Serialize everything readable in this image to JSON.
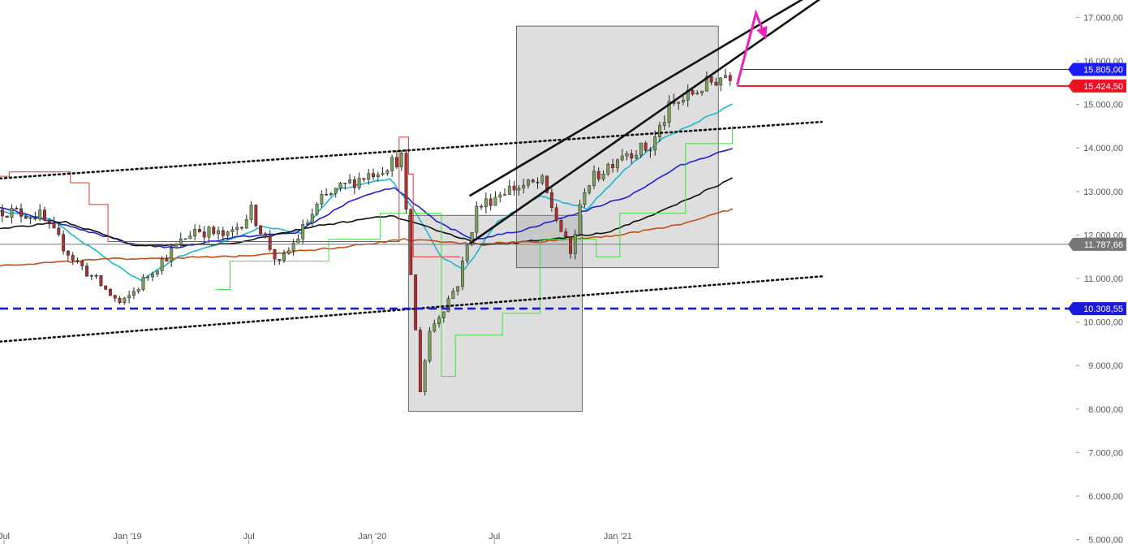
{
  "chart_data": {
    "type": "candlestick",
    "y_axis": {
      "position": "right",
      "range": [
        4900,
        17400
      ],
      "ticks": [
        {
          "value": 5000,
          "label": "5.000,00"
        },
        {
          "value": 6000,
          "label": "6.000,00"
        },
        {
          "value": 7000,
          "label": "7.000,00"
        },
        {
          "value": 8000,
          "label": "8.000,00"
        },
        {
          "value": 9000,
          "label": "9.000,00"
        },
        {
          "value": 10000,
          "label": "10.000,00"
        },
        {
          "value": 11000,
          "label": "11.000,00"
        },
        {
          "value": 12000,
          "label": "12.000,00"
        },
        {
          "value": 13000,
          "label": "13.000,00"
        },
        {
          "value": 14000,
          "label": "14.000,00"
        },
        {
          "value": 15000,
          "label": "15.000,00"
        },
        {
          "value": 16000,
          "label": "16.000,00"
        },
        {
          "value": 17000,
          "label": "17.000,00"
        }
      ]
    },
    "x_axis": {
      "range": [
        "2018-06-25",
        "2021-07-12"
      ],
      "ticks": [
        {
          "date": "2018-07-01",
          "label": "Jul"
        },
        {
          "date": "2019-01-01",
          "label": "Jan '19"
        },
        {
          "date": "2019-07-01",
          "label": "Jul"
        },
        {
          "date": "2020-01-01",
          "label": "Jan '20"
        },
        {
          "date": "2020-07-01",
          "label": "Jul"
        },
        {
          "date": "2021-01-01",
          "label": "Jan '21"
        }
      ]
    },
    "price_lines": [
      {
        "value": 15805,
        "label": "15.805,00",
        "color": "#1a1aff",
        "style": "solid"
      },
      {
        "value": 15424.5,
        "label": "15.424,50",
        "color": "#ee1122",
        "style": "solid"
      },
      {
        "value": 11787.66,
        "label": "11.787,66",
        "color": "#777777",
        "style": "solid"
      },
      {
        "value": 10308.55,
        "label": "10.308,55",
        "color": "#1a1adb",
        "style": "dashed"
      }
    ],
    "key_points": [
      {
        "date": "2018-06-25",
        "value": 12580
      },
      {
        "date": "2018-08-27",
        "value": 12440
      },
      {
        "date": "2018-10-15",
        "value": 11470
      },
      {
        "date": "2018-12-27",
        "value": 10380
      },
      {
        "date": "2019-02-11",
        "value": 11200
      },
      {
        "date": "2019-04-15",
        "value": 12150
      },
      {
        "date": "2019-06-03",
        "value": 11950
      },
      {
        "date": "2019-07-08",
        "value": 12550
      },
      {
        "date": "2019-08-19",
        "value": 11300
      },
      {
        "date": "2019-10-21",
        "value": 12800
      },
      {
        "date": "2019-12-02",
        "value": 13200
      },
      {
        "date": "2020-01-13",
        "value": 13500
      },
      {
        "date": "2020-02-17",
        "value": 13780
      },
      {
        "date": "2020-03-16",
        "value": 8450
      },
      {
        "date": "2020-03-30",
        "value": 9800
      },
      {
        "date": "2020-05-11",
        "value": 10900
      },
      {
        "date": "2020-06-08",
        "value": 12600
      },
      {
        "date": "2020-07-20",
        "value": 13050
      },
      {
        "date": "2020-09-14",
        "value": 13200
      },
      {
        "date": "2020-10-26",
        "value": 11550
      },
      {
        "date": "2020-11-16",
        "value": 13100
      },
      {
        "date": "2021-01-11",
        "value": 13900
      },
      {
        "date": "2021-02-22",
        "value": 14000
      },
      {
        "date": "2021-03-22",
        "value": 14900
      },
      {
        "date": "2021-05-10",
        "value": 15400
      },
      {
        "date": "2021-06-14",
        "value": 15700
      }
    ],
    "overlays": [
      {
        "name": "sma-fast",
        "color": "#1ab8cc",
        "points": [
          [
            "2018-06-25",
            12550
          ],
          [
            "2018-09-10",
            12350
          ],
          [
            "2018-12-10",
            11350
          ],
          [
            "2019-01-21",
            10950
          ],
          [
            "2019-03-18",
            11500
          ],
          [
            "2019-06-03",
            11900
          ],
          [
            "2019-07-22",
            12200
          ],
          [
            "2019-09-16",
            12050
          ],
          [
            "2019-11-11",
            13050
          ],
          [
            "2020-01-27",
            13300
          ],
          [
            "2020-03-02",
            12600
          ],
          [
            "2020-04-13",
            11500
          ],
          [
            "2020-05-18",
            11200
          ],
          [
            "2020-07-06",
            12300
          ],
          [
            "2020-09-07",
            12900
          ],
          [
            "2020-11-16",
            12600
          ],
          [
            "2021-01-11",
            13500
          ],
          [
            "2021-03-08",
            14200
          ],
          [
            "2021-06-21",
            15000
          ]
        ]
      },
      {
        "name": "sma-medium",
        "color": "#2222cc",
        "points": [
          [
            "2018-06-25",
            12650
          ],
          [
            "2018-10-08",
            12200
          ],
          [
            "2019-01-07",
            11800
          ],
          [
            "2019-03-11",
            11700
          ],
          [
            "2019-06-10",
            11950
          ],
          [
            "2019-09-09",
            12050
          ],
          [
            "2019-12-02",
            12800
          ],
          [
            "2020-02-03",
            13100
          ],
          [
            "2020-04-06",
            12300
          ],
          [
            "2020-06-01",
            11900
          ],
          [
            "2020-08-10",
            12100
          ],
          [
            "2020-11-02",
            12500
          ],
          [
            "2021-01-18",
            12900
          ],
          [
            "2021-04-05",
            13600
          ],
          [
            "2021-06-21",
            14000
          ]
        ]
      },
      {
        "name": "sma-slow",
        "color": "#111111",
        "points": [
          [
            "2018-06-25",
            12150
          ],
          [
            "2018-10-01",
            12300
          ],
          [
            "2019-01-14",
            11750
          ],
          [
            "2019-06-03",
            11800
          ],
          [
            "2019-10-07",
            12200
          ],
          [
            "2020-01-27",
            12450
          ],
          [
            "2020-04-20",
            12050
          ],
          [
            "2020-06-15",
            11750
          ],
          [
            "2020-09-21",
            11900
          ],
          [
            "2020-12-14",
            12050
          ],
          [
            "2021-03-08",
            12550
          ],
          [
            "2021-06-21",
            13300
          ]
        ]
      },
      {
        "name": "sma-200",
        "color": "#c0501a",
        "points": [
          [
            "2018-06-25",
            11300
          ],
          [
            "2018-12-10",
            11450
          ],
          [
            "2019-06-03",
            11500
          ],
          [
            "2019-11-04",
            11700
          ],
          [
            "2020-02-17",
            11900
          ],
          [
            "2020-05-25",
            11800
          ],
          [
            "2020-09-07",
            11850
          ],
          [
            "2021-01-04",
            12000
          ],
          [
            "2021-04-05",
            12250
          ],
          [
            "2021-06-21",
            12600
          ]
        ]
      },
      {
        "name": "trailing-stop-red",
        "color": "#e83030",
        "points": [
          [
            "2018-06-25",
            13350
          ],
          [
            "2018-07-09",
            13450
          ],
          [
            "2018-09-03",
            13450
          ],
          [
            "2018-10-08",
            13200
          ],
          [
            "2018-11-05",
            12700
          ],
          [
            "2018-12-03",
            11850
          ],
          [
            "2019-01-28",
            11850
          ],
          [
            "2019-05-06",
            11850
          ],
          [
            "2020-02-10",
            14250
          ],
          [
            "2020-02-24",
            13400
          ],
          [
            "2020-03-02",
            11500
          ],
          [
            "2020-05-11",
            11500
          ]
        ]
      },
      {
        "name": "trailing-stop-green",
        "color": "#44dd44",
        "points": [
          [
            "2019-05-13",
            10750
          ],
          [
            "2019-06-03",
            11400
          ],
          [
            "2019-10-07",
            11400
          ],
          [
            "2019-10-28",
            11900
          ],
          [
            "2020-01-13",
            12500
          ],
          [
            "2020-04-13",
            8750
          ],
          [
            "2020-05-04",
            9700
          ],
          [
            "2020-07-13",
            10200
          ],
          [
            "2020-09-07",
            11900
          ],
          [
            "2020-11-30",
            11500
          ],
          [
            "2021-01-04",
            12500
          ],
          [
            "2021-04-12",
            14100
          ],
          [
            "2021-06-21",
            14500
          ]
        ]
      }
    ],
    "channels": [
      {
        "name": "long-channel-upper",
        "style": "dotted",
        "color": "#111111",
        "from": [
          "2018-06-25",
          13300
        ],
        "to": [
          "2021-11-01",
          14600
        ]
      },
      {
        "name": "long-channel-lower",
        "style": "dotted",
        "color": "#111111",
        "from": [
          "2018-06-25",
          9550
        ],
        "to": [
          "2021-11-01",
          11050
        ]
      },
      {
        "name": "steep-channel-upper",
        "style": "solid",
        "color": "#111111",
        "from": [
          "2020-05-25",
          12900
        ],
        "to": [
          "2021-10-18",
          17550
        ]
      },
      {
        "name": "steep-channel-lower",
        "style": "solid",
        "color": "#111111",
        "from": [
          "2020-05-25",
          11800
        ],
        "to": [
          "2021-11-15",
          17600
        ]
      }
    ],
    "boxes": [
      {
        "name": "box-covid",
        "from": [
          "2020-02-24",
          12450
        ],
        "to": [
          "2020-11-09",
          7950
        ]
      },
      {
        "name": "box-rally",
        "from": [
          "2020-08-03",
          16800
        ],
        "to": [
          "2021-05-31",
          11250
        ]
      }
    ],
    "arrow": {
      "color": "#ee22bb",
      "points": [
        [
          "2021-06-28",
          15450
        ],
        [
          "2021-07-26",
          17100
        ],
        [
          "2021-08-09",
          16550
        ]
      ]
    }
  }
}
